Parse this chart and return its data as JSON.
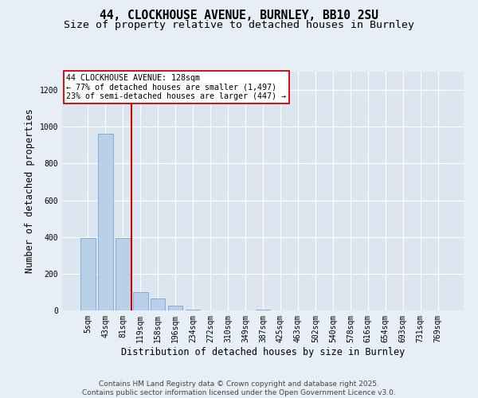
{
  "title_line1": "44, CLOCKHOUSE AVENUE, BURNLEY, BB10 2SU",
  "title_line2": "Size of property relative to detached houses in Burnley",
  "xlabel": "Distribution of detached houses by size in Burnley",
  "ylabel": "Number of detached properties",
  "categories": [
    "5sqm",
    "43sqm",
    "81sqm",
    "119sqm",
    "158sqm",
    "196sqm",
    "234sqm",
    "272sqm",
    "310sqm",
    "349sqm",
    "387sqm",
    "425sqm",
    "463sqm",
    "502sqm",
    "540sqm",
    "578sqm",
    "616sqm",
    "654sqm",
    "693sqm",
    "731sqm",
    "769sqm"
  ],
  "values": [
    395,
    960,
    395,
    100,
    65,
    25,
    5,
    0,
    0,
    0,
    3,
    0,
    0,
    0,
    0,
    0,
    0,
    0,
    0,
    0,
    0
  ],
  "bar_color": "#b8d0e8",
  "bar_edge_color": "#6699cc",
  "vline_color": "#cc0000",
  "vline_x_index": 2.5,
  "annotation_box_text": "44 CLOCKHOUSE AVENUE: 128sqm\n← 77% of detached houses are smaller (1,497)\n23% of semi-detached houses are larger (447) →",
  "ylim": [
    0,
    1300
  ],
  "yticks": [
    0,
    200,
    400,
    600,
    800,
    1000,
    1200
  ],
  "plot_bg_color": "#dde6f0",
  "fig_bg_color": "#e8eef5",
  "footer_line1": "Contains HM Land Registry data © Crown copyright and database right 2025.",
  "footer_line2": "Contains public sector information licensed under the Open Government Licence v3.0.",
  "title_fontsize": 10.5,
  "subtitle_fontsize": 9.5,
  "tick_fontsize": 7,
  "label_fontsize": 8.5,
  "footer_fontsize": 6.5
}
